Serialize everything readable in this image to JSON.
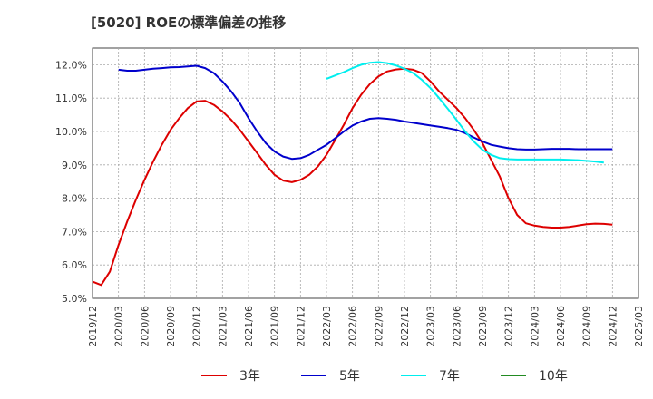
{
  "chart_data": {
    "type": "line",
    "title": "[5020]  ROEの標準偏差の推移",
    "xlabel": "",
    "ylabel": "",
    "ylim": [
      5.0,
      12.5
    ],
    "yticks": [
      5.0,
      6.0,
      7.0,
      8.0,
      9.0,
      10.0,
      11.0,
      12.0
    ],
    "ytick_labels": [
      "5.0%",
      "6.0%",
      "7.0%",
      "8.0%",
      "9.0%",
      "10.0%",
      "11.0%",
      "12.0%"
    ],
    "xlim": [
      0,
      63
    ],
    "xticks": [
      0,
      3,
      6,
      9,
      12,
      15,
      18,
      21,
      24,
      27,
      30,
      33,
      36,
      39,
      42,
      45,
      48,
      51,
      54,
      57,
      60,
      63
    ],
    "xtick_labels": [
      "2019/12",
      "2020/03",
      "2020/06",
      "2020/09",
      "2020/12",
      "2021/03",
      "2021/06",
      "2021/09",
      "2021/12",
      "2022/03",
      "2022/06",
      "2022/09",
      "2022/12",
      "2023/03",
      "2023/06",
      "2023/09",
      "2023/12",
      "2024/03",
      "2024/06",
      "2024/09",
      "2024/12",
      "2025/03"
    ],
    "grid": true,
    "legend_position": "bottom",
    "series": [
      {
        "name": "3年",
        "color": "#dd0000",
        "start": 0,
        "values": [
          5.5,
          5.4,
          5.8,
          6.6,
          7.3,
          7.95,
          8.55,
          9.1,
          9.6,
          10.05,
          10.4,
          10.7,
          10.9,
          10.92,
          10.8,
          10.6,
          10.35,
          10.05,
          9.7,
          9.35,
          9.0,
          8.7,
          8.53,
          8.48,
          8.55,
          8.7,
          8.95,
          9.3,
          9.75,
          10.2,
          10.7,
          11.1,
          11.42,
          11.65,
          11.8,
          11.86,
          11.88,
          11.85,
          11.75,
          11.5,
          11.2,
          10.95,
          10.7,
          10.4,
          10.05,
          9.65,
          9.15,
          8.65,
          8.0,
          7.5,
          7.25,
          7.18,
          7.14,
          7.12,
          7.12,
          7.14,
          7.18,
          7.22,
          7.24,
          7.23,
          7.21
        ]
      },
      {
        "name": "5年",
        "color": "#0000cc",
        "start": 3,
        "values": [
          11.85,
          11.82,
          11.82,
          11.85,
          11.88,
          11.9,
          11.92,
          11.93,
          11.95,
          11.97,
          11.9,
          11.75,
          11.5,
          11.2,
          10.85,
          10.4,
          10.0,
          9.65,
          9.4,
          9.25,
          9.18,
          9.2,
          9.3,
          9.45,
          9.6,
          9.8,
          10.0,
          10.18,
          10.3,
          10.38,
          10.4,
          10.38,
          10.35,
          10.3,
          10.26,
          10.22,
          10.18,
          10.14,
          10.1,
          10.05,
          9.95,
          9.82,
          9.7,
          9.6,
          9.55,
          9.5,
          9.47,
          9.46,
          9.46,
          9.47,
          9.48,
          9.48,
          9.48,
          9.47,
          9.47,
          9.47,
          9.47,
          9.47
        ]
      },
      {
        "name": "7年",
        "color": "#00eeee",
        "start": 27,
        "values": [
          11.58,
          11.68,
          11.78,
          11.9,
          12.0,
          12.06,
          12.08,
          12.05,
          11.98,
          11.88,
          11.75,
          11.55,
          11.3,
          11.0,
          10.68,
          10.35,
          10.0,
          9.7,
          9.45,
          9.3,
          9.2,
          9.17,
          9.16,
          9.16,
          9.16,
          9.16,
          9.16,
          9.16,
          9.15,
          9.14,
          9.12,
          9.1,
          9.07
        ]
      },
      {
        "name": "10年",
        "color": "#228b22",
        "start": 0,
        "values": []
      }
    ]
  }
}
